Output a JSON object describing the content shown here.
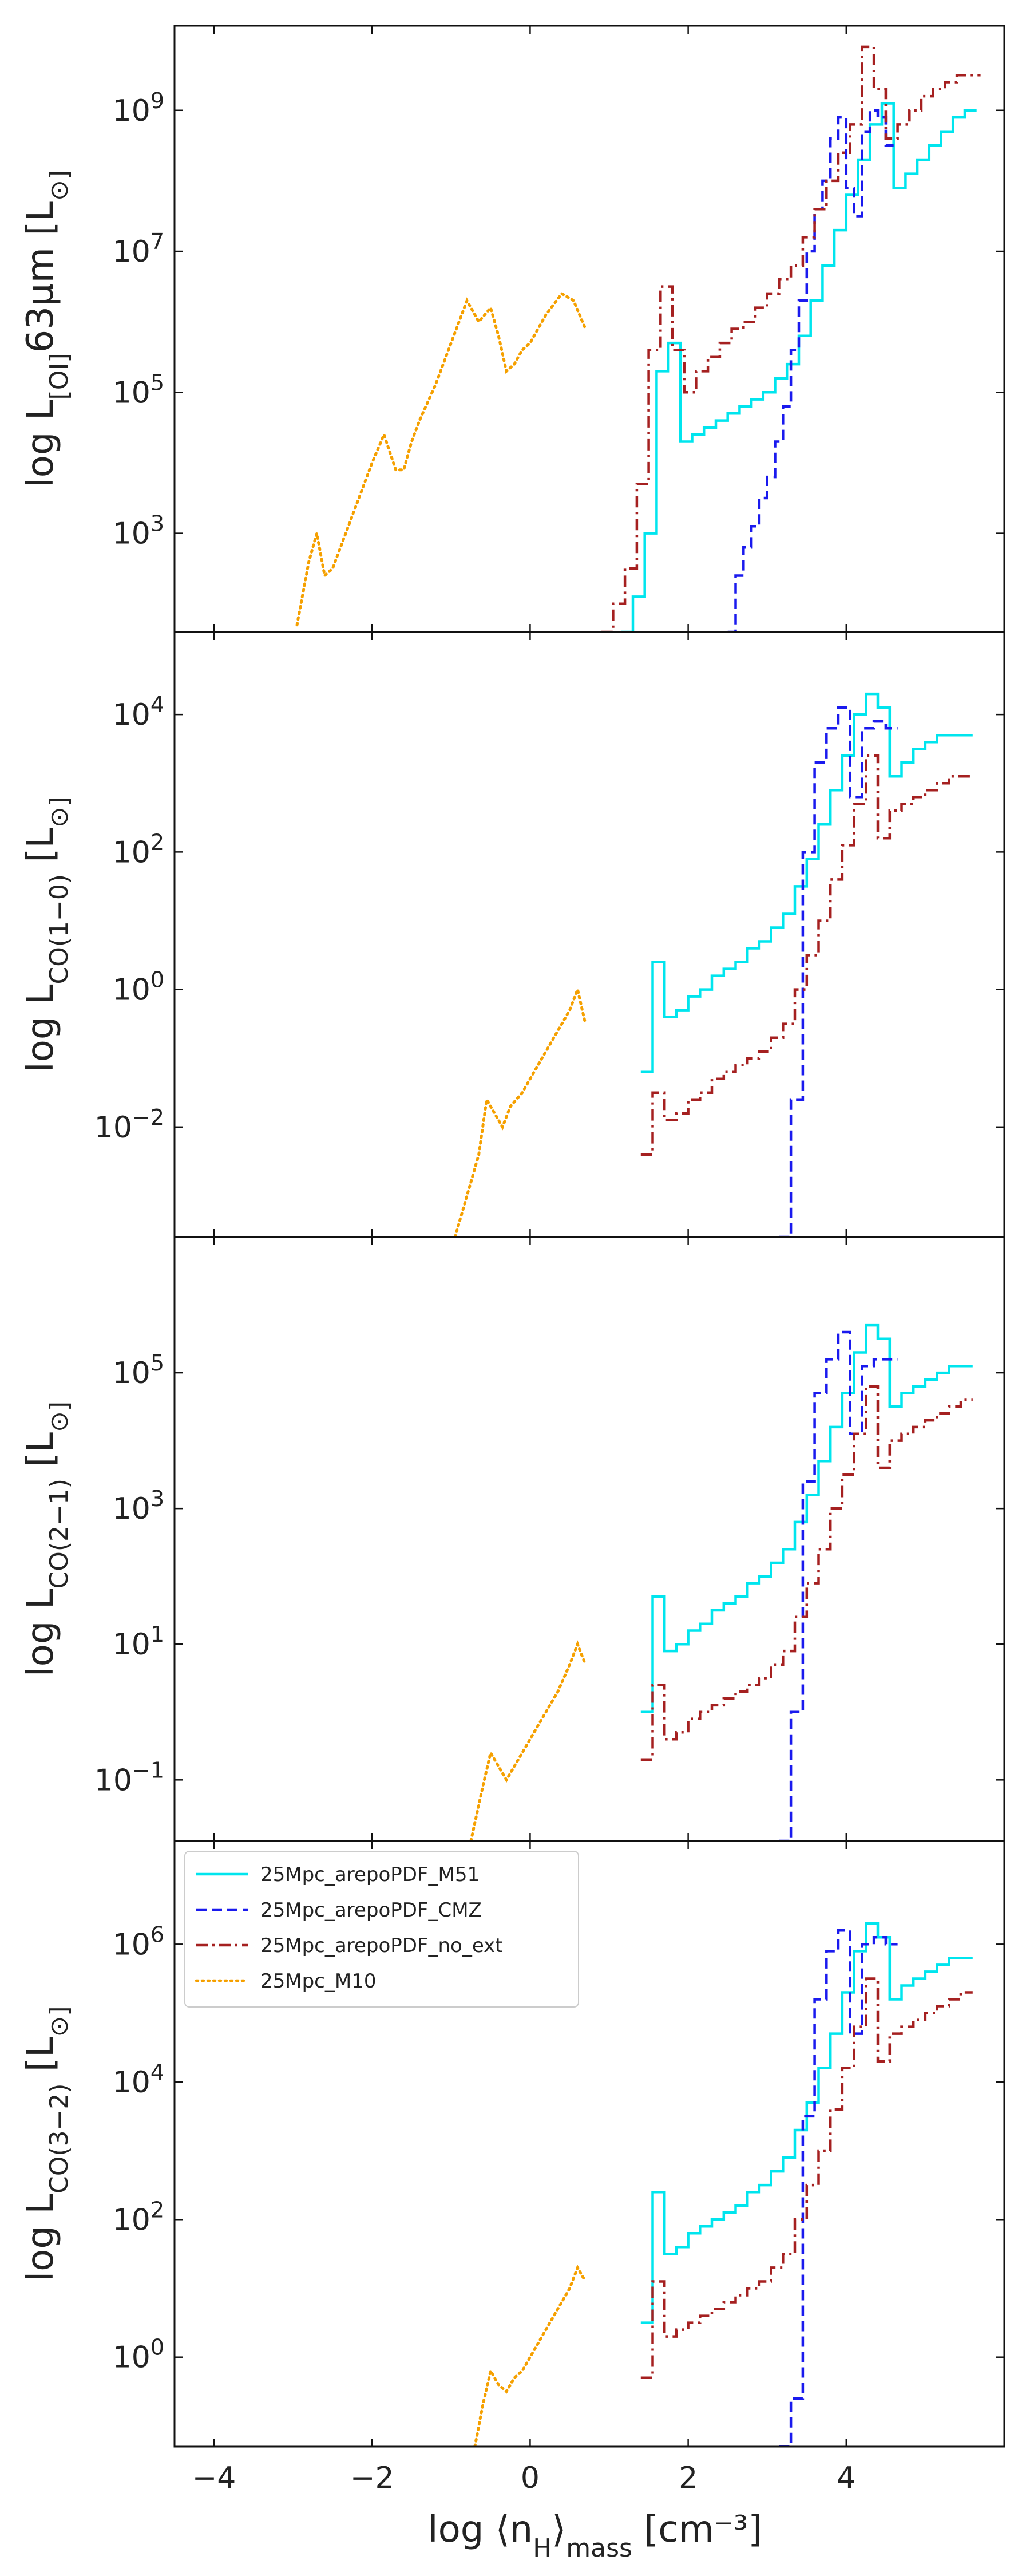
{
  "figure": {
    "xlabel": "log ⟨n_H⟩_mass [cm⁻³]"
  },
  "chart_data": [
    {
      "type": "line",
      "panel": "OI63",
      "ylabel": "log L_[OI]63μm [L_⊙]",
      "xlim": [
        -4.5,
        6.0
      ],
      "ylim_log10": [
        1.6,
        10.2
      ],
      "yscale": "log",
      "xticks": [
        "−4",
        "−2",
        "0",
        "2",
        "4"
      ],
      "yticks": [
        {
          "exp": 3,
          "label": "10^3"
        },
        {
          "exp": 5,
          "label": "10^5"
        },
        {
          "exp": 7,
          "label": "10^7"
        },
        {
          "exp": 9,
          "label": "10^9"
        }
      ],
      "series": [
        {
          "name": "25Mpc_arepoPDF_M51",
          "color": "#00e5ee",
          "dash": "solid",
          "steps": true,
          "x": [
            1.15,
            1.3,
            1.45,
            1.6,
            1.75,
            1.9,
            2.05,
            2.2,
            2.35,
            2.5,
            2.65,
            2.8,
            2.95,
            3.1,
            3.25,
            3.4,
            3.55,
            3.7,
            3.85,
            4.0,
            4.15,
            4.3,
            4.45,
            4.6,
            4.75,
            4.9,
            5.05,
            5.2,
            5.35,
            5.5
          ],
          "y_log10": [
            1.6,
            2.1,
            3.0,
            5.3,
            5.7,
            4.3,
            4.4,
            4.5,
            4.6,
            4.7,
            4.8,
            4.9,
            5.0,
            5.2,
            5.4,
            5.8,
            6.3,
            6.8,
            7.3,
            7.8,
            8.3,
            8.8,
            9.1,
            7.9,
            8.1,
            8.3,
            8.5,
            8.7,
            8.9,
            9.0
          ]
        },
        {
          "name": "25Mpc_arepoPDF_CMZ",
          "color": "#1a1aee",
          "dash": "dashed",
          "steps": true,
          "x": [
            2.5,
            2.6,
            2.7,
            2.8,
            2.9,
            3.0,
            3.1,
            3.2,
            3.3,
            3.4,
            3.5,
            3.6,
            3.7,
            3.8,
            3.9,
            4.0,
            4.1,
            4.2,
            4.3,
            4.4,
            4.5
          ],
          "y_log10": [
            1.6,
            2.4,
            2.8,
            3.1,
            3.5,
            3.8,
            4.3,
            4.8,
            5.6,
            6.3,
            7.0,
            7.6,
            8.0,
            8.6,
            8.9,
            7.9,
            7.5,
            8.7,
            9.0,
            8.9,
            8.5
          ]
        },
        {
          "name": "25Mpc_arepoPDF_no_ext",
          "color": "#a52020",
          "dash": "dashdot",
          "steps": true,
          "x": [
            0.9,
            1.05,
            1.2,
            1.35,
            1.5,
            1.65,
            1.8,
            1.95,
            2.1,
            2.25,
            2.4,
            2.55,
            2.7,
            2.85,
            3.0,
            3.15,
            3.3,
            3.45,
            3.6,
            3.75,
            3.9,
            4.05,
            4.2,
            4.35,
            4.5,
            4.65,
            4.8,
            4.95,
            5.1,
            5.25,
            5.4,
            5.55
          ],
          "y_log10": [
            1.6,
            2.0,
            2.5,
            3.7,
            5.6,
            6.5,
            5.6,
            5.0,
            5.3,
            5.5,
            5.7,
            5.9,
            6.0,
            6.2,
            6.4,
            6.6,
            6.8,
            7.2,
            7.6,
            8.0,
            8.4,
            8.8,
            9.9,
            9.3,
            8.6,
            8.8,
            9.0,
            9.2,
            9.3,
            9.4,
            9.5,
            9.5
          ]
        },
        {
          "name": "25Mpc_M10",
          "color": "#f5a000",
          "dash": "dotted",
          "steps": false,
          "x": [
            -2.95,
            -2.8,
            -2.7,
            -2.6,
            -2.5,
            -2.4,
            -2.2,
            -2.0,
            -1.85,
            -1.7,
            -1.6,
            -1.5,
            -1.4,
            -1.2,
            -1.0,
            -0.8,
            -0.65,
            -0.5,
            -0.4,
            -0.3,
            -0.2,
            -0.1,
            0.0,
            0.2,
            0.4,
            0.55,
            0.7
          ],
          "y_log10": [
            1.7,
            2.6,
            3.0,
            2.4,
            2.5,
            2.8,
            3.4,
            4.0,
            4.4,
            3.9,
            3.9,
            4.3,
            4.6,
            5.1,
            5.7,
            6.3,
            6.0,
            6.2,
            5.8,
            5.3,
            5.4,
            5.6,
            5.7,
            6.1,
            6.4,
            6.3,
            5.9
          ]
        }
      ]
    },
    {
      "type": "line",
      "panel": "CO10",
      "ylabel": "log L_CO(1−0) [L_⊙]",
      "xlim": [
        -4.5,
        6.0
      ],
      "ylim_log10": [
        -3.6,
        5.2
      ],
      "yscale": "log",
      "xticks": [
        "−4",
        "−2",
        "0",
        "2",
        "4"
      ],
      "yticks": [
        {
          "exp": -2,
          "label": "10^−2"
        },
        {
          "exp": 0,
          "label": "10^0"
        },
        {
          "exp": 2,
          "label": "10^2"
        },
        {
          "exp": 4,
          "label": "10^4"
        }
      ],
      "series": [
        {
          "name": "25Mpc_arepoPDF_M51",
          "color": "#00e5ee",
          "dash": "solid",
          "steps": true,
          "x": [
            1.4,
            1.55,
            1.7,
            1.85,
            2.0,
            2.15,
            2.3,
            2.45,
            2.6,
            2.75,
            2.9,
            3.05,
            3.2,
            3.35,
            3.5,
            3.65,
            3.8,
            3.95,
            4.1,
            4.25,
            4.4,
            4.55,
            4.7,
            4.85,
            5.0,
            5.15,
            5.3,
            5.45
          ],
          "y_log10": [
            -1.2,
            0.4,
            -0.4,
            -0.3,
            -0.1,
            0.0,
            0.2,
            0.3,
            0.4,
            0.6,
            0.7,
            0.9,
            1.1,
            1.5,
            1.9,
            2.4,
            2.9,
            3.4,
            4.0,
            4.3,
            4.1,
            3.1,
            3.3,
            3.5,
            3.6,
            3.7,
            3.7,
            3.7
          ]
        },
        {
          "name": "25Mpc_arepoPDF_CMZ",
          "color": "#1a1aee",
          "dash": "dashed",
          "steps": true,
          "x": [
            3.15,
            3.3,
            3.45,
            3.6,
            3.75,
            3.9,
            4.05,
            4.2,
            4.35,
            4.5
          ],
          "y_log10": [
            -3.6,
            -1.6,
            2.0,
            3.3,
            3.8,
            4.1,
            2.8,
            3.8,
            3.9,
            3.8
          ]
        },
        {
          "name": "25Mpc_arepoPDF_no_ext",
          "color": "#a52020",
          "dash": "dashdot",
          "steps": true,
          "x": [
            1.4,
            1.55,
            1.7,
            1.85,
            2.0,
            2.15,
            2.3,
            2.45,
            2.6,
            2.75,
            2.9,
            3.05,
            3.2,
            3.35,
            3.5,
            3.65,
            3.8,
            3.95,
            4.1,
            4.25,
            4.4,
            4.55,
            4.7,
            4.85,
            5.0,
            5.15,
            5.3,
            5.45
          ],
          "y_log10": [
            -2.4,
            -1.5,
            -1.9,
            -1.8,
            -1.6,
            -1.5,
            -1.3,
            -1.2,
            -1.1,
            -1.0,
            -0.9,
            -0.7,
            -0.5,
            0.0,
            0.5,
            1.0,
            1.6,
            2.1,
            2.7,
            3.4,
            2.2,
            2.6,
            2.7,
            2.8,
            2.9,
            3.0,
            3.1,
            3.1
          ]
        },
        {
          "name": "25Mpc_M10",
          "color": "#f5a000",
          "dash": "dotted",
          "steps": false,
          "x": [
            -0.95,
            -0.8,
            -0.65,
            -0.55,
            -0.45,
            -0.35,
            -0.25,
            -0.1,
            0.05,
            0.2,
            0.35,
            0.5,
            0.6,
            0.7
          ],
          "y_log10": [
            -3.6,
            -3.0,
            -2.4,
            -1.6,
            -1.8,
            -2.0,
            -1.7,
            -1.5,
            -1.2,
            -0.9,
            -0.6,
            -0.3,
            0.0,
            -0.5
          ]
        }
      ]
    },
    {
      "type": "line",
      "panel": "CO21",
      "ylabel": "log L_CO(2−1) [L_⊙]",
      "xlim": [
        -4.5,
        6.0
      ],
      "ylim_log10": [
        -1.9,
        7.0
      ],
      "yscale": "log",
      "xticks": [
        "−4",
        "−2",
        "0",
        "2",
        "4"
      ],
      "yticks": [
        {
          "exp": -1,
          "label": "10^−1"
        },
        {
          "exp": 1,
          "label": "10^1"
        },
        {
          "exp": 3,
          "label": "10^3"
        },
        {
          "exp": 5,
          "label": "10^5"
        }
      ],
      "series": [
        {
          "name": "25Mpc_arepoPDF_M51",
          "color": "#00e5ee",
          "dash": "solid",
          "steps": true,
          "x": [
            1.4,
            1.55,
            1.7,
            1.85,
            2.0,
            2.15,
            2.3,
            2.45,
            2.6,
            2.75,
            2.9,
            3.05,
            3.2,
            3.35,
            3.5,
            3.65,
            3.8,
            3.95,
            4.1,
            4.25,
            4.4,
            4.55,
            4.7,
            4.85,
            5.0,
            5.15,
            5.3,
            5.45
          ],
          "y_log10": [
            0.0,
            1.7,
            0.9,
            1.0,
            1.2,
            1.3,
            1.5,
            1.6,
            1.7,
            1.9,
            2.0,
            2.2,
            2.4,
            2.8,
            3.2,
            3.7,
            4.2,
            4.7,
            5.3,
            5.7,
            5.5,
            4.5,
            4.7,
            4.8,
            4.9,
            5.0,
            5.1,
            5.1
          ]
        },
        {
          "name": "25Mpc_arepoPDF_CMZ",
          "color": "#1a1aee",
          "dash": "dashed",
          "steps": true,
          "x": [
            3.15,
            3.3,
            3.45,
            3.6,
            3.75,
            3.9,
            4.05,
            4.2,
            4.35,
            4.5
          ],
          "y_log10": [
            -1.9,
            0.0,
            3.4,
            4.7,
            5.2,
            5.6,
            4.1,
            5.1,
            5.2,
            5.2
          ]
        },
        {
          "name": "25Mpc_arepoPDF_no_ext",
          "color": "#a52020",
          "dash": "dashdot",
          "steps": true,
          "x": [
            1.4,
            1.55,
            1.7,
            1.85,
            2.0,
            2.15,
            2.3,
            2.45,
            2.6,
            2.75,
            2.9,
            3.05,
            3.2,
            3.35,
            3.5,
            3.65,
            3.8,
            3.95,
            4.1,
            4.25,
            4.4,
            4.55,
            4.7,
            4.85,
            5.0,
            5.15,
            5.3,
            5.45
          ],
          "y_log10": [
            -0.7,
            0.4,
            -0.4,
            -0.3,
            -0.1,
            0.0,
            0.1,
            0.2,
            0.3,
            0.4,
            0.5,
            0.7,
            0.9,
            1.4,
            1.9,
            2.4,
            3.0,
            3.5,
            4.1,
            4.8,
            3.6,
            4.0,
            4.1,
            4.2,
            4.3,
            4.4,
            4.5,
            4.6
          ]
        },
        {
          "name": "25Mpc_M10",
          "color": "#f5a000",
          "dash": "dotted",
          "steps": false,
          "x": [
            -0.75,
            -0.6,
            -0.5,
            -0.4,
            -0.3,
            -0.2,
            -0.1,
            0.05,
            0.2,
            0.35,
            0.5,
            0.6,
            0.7
          ],
          "y_log10": [
            -1.9,
            -1.1,
            -0.6,
            -0.8,
            -1.0,
            -0.8,
            -0.6,
            -0.3,
            0.0,
            0.3,
            0.7,
            1.0,
            0.7
          ]
        }
      ]
    },
    {
      "type": "line",
      "panel": "CO32",
      "ylabel": "log L_CO(3−2) [L_⊙]",
      "xlim": [
        -4.5,
        6.0
      ],
      "ylim_log10": [
        -1.3,
        7.5
      ],
      "yscale": "log",
      "xticks": [
        "−4",
        "−2",
        "0",
        "2",
        "4"
      ],
      "yticks": [
        {
          "exp": 0,
          "label": "10^0"
        },
        {
          "exp": 2,
          "label": "10^2"
        },
        {
          "exp": 4,
          "label": "10^4"
        },
        {
          "exp": 6,
          "label": "10^6"
        }
      ],
      "legend": {
        "position": "top-left",
        "entries": [
          "25Mpc_arepoPDF_M51",
          "25Mpc_arepoPDF_CMZ",
          "25Mpc_arepoPDF_no_ext",
          "25Mpc_M10"
        ]
      },
      "series": [
        {
          "name": "25Mpc_arepoPDF_M51",
          "color": "#00e5ee",
          "dash": "solid",
          "steps": true,
          "x": [
            1.4,
            1.55,
            1.7,
            1.85,
            2.0,
            2.15,
            2.3,
            2.45,
            2.6,
            2.75,
            2.9,
            3.05,
            3.2,
            3.35,
            3.5,
            3.65,
            3.8,
            3.95,
            4.1,
            4.25,
            4.4,
            4.55,
            4.7,
            4.85,
            5.0,
            5.15,
            5.3,
            5.45
          ],
          "y_log10": [
            0.5,
            2.4,
            1.5,
            1.6,
            1.8,
            1.9,
            2.0,
            2.1,
            2.2,
            2.4,
            2.5,
            2.7,
            2.9,
            3.3,
            3.7,
            4.2,
            4.7,
            5.3,
            5.9,
            6.3,
            6.1,
            5.2,
            5.4,
            5.5,
            5.6,
            5.7,
            5.8,
            5.8
          ]
        },
        {
          "name": "25Mpc_arepoPDF_CMZ",
          "color": "#1a1aee",
          "dash": "dashed",
          "steps": true,
          "x": [
            3.15,
            3.3,
            3.45,
            3.6,
            3.75,
            3.9,
            4.05,
            4.2,
            4.35,
            4.5
          ],
          "y_log10": [
            -1.3,
            -0.6,
            3.5,
            5.2,
            5.9,
            6.2,
            4.7,
            6.0,
            6.1,
            6.0
          ]
        },
        {
          "name": "25Mpc_arepoPDF_no_ext",
          "color": "#a52020",
          "dash": "dashdot",
          "steps": true,
          "x": [
            1.4,
            1.55,
            1.7,
            1.85,
            2.0,
            2.15,
            2.3,
            2.45,
            2.6,
            2.75,
            2.9,
            3.05,
            3.2,
            3.35,
            3.5,
            3.65,
            3.8,
            3.95,
            4.1,
            4.25,
            4.4,
            4.55,
            4.7,
            4.85,
            5.0,
            5.15,
            5.3,
            5.45
          ],
          "y_log10": [
            -0.3,
            1.1,
            0.3,
            0.4,
            0.5,
            0.6,
            0.7,
            0.8,
            0.9,
            1.0,
            1.1,
            1.3,
            1.5,
            2.0,
            2.5,
            3.0,
            3.6,
            4.2,
            4.8,
            5.5,
            4.3,
            4.7,
            4.8,
            4.9,
            5.0,
            5.1,
            5.2,
            5.3
          ]
        },
        {
          "name": "25Mpc_M10",
          "color": "#f5a000",
          "dash": "dotted",
          "steps": false,
          "x": [
            -0.7,
            -0.6,
            -0.5,
            -0.4,
            -0.3,
            -0.2,
            -0.1,
            0.05,
            0.2,
            0.35,
            0.5,
            0.6,
            0.7
          ],
          "y_log10": [
            -1.3,
            -0.7,
            -0.2,
            -0.4,
            -0.5,
            -0.3,
            -0.2,
            0.1,
            0.4,
            0.7,
            1.0,
            1.3,
            1.1
          ]
        }
      ]
    }
  ]
}
